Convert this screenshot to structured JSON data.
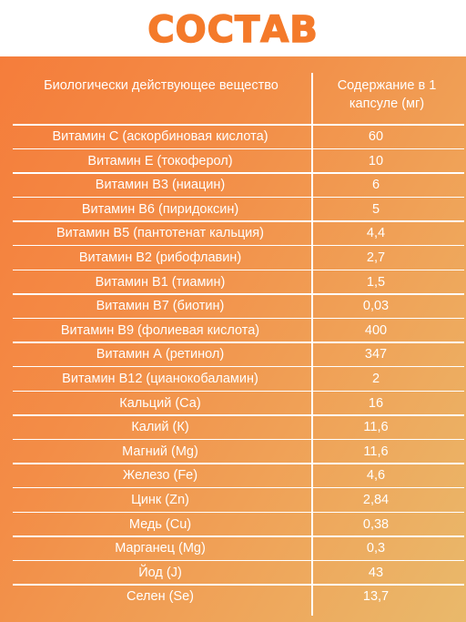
{
  "title": "СОСТАВ",
  "table": {
    "header": {
      "name": "Биологически действующее вещество",
      "value": "Содержание в 1 капсуле (мг)"
    },
    "rows": [
      {
        "name": "Витамин С (аскорбиновая кислота)",
        "value": "60"
      },
      {
        "name": "Витамин Е (токоферол)",
        "value": "10"
      },
      {
        "name": "Витамин В3 (ниацин)",
        "value": "6"
      },
      {
        "name": "Витамин В6 (пиридоксин)",
        "value": "5"
      },
      {
        "name": "Витамин В5 (пантотенат кальция)",
        "value": "4,4"
      },
      {
        "name": "Витамин В2 (рибофлавин)",
        "value": "2,7"
      },
      {
        "name": "Витамин В1 (тиамин)",
        "value": "1,5"
      },
      {
        "name": "Витамин В7 (биотин)",
        "value": "0,03"
      },
      {
        "name": "Витамин В9 (фолиевая кислота)",
        "value": "400"
      },
      {
        "name": "Витамин А (ретинол)",
        "value": "347"
      },
      {
        "name": "Витамин В12 (цианокобаламин)",
        "value": "2"
      },
      {
        "name": "Кальций (Са)",
        "value": "16"
      },
      {
        "name": "Калий (К)",
        "value": "11,6"
      },
      {
        "name": "Магний (Mg)",
        "value": "11,6"
      },
      {
        "name": "Железо (Fe)",
        "value": "4,6"
      },
      {
        "name": "Цинк (Zn)",
        "value": "2,84"
      },
      {
        "name": "Медь (Cu)",
        "value": "0,38"
      },
      {
        "name": "Марганец (Mg)",
        "value": "0,3"
      },
      {
        "name": "Йод (J)",
        "value": "43"
      },
      {
        "name": "Селен (Se)",
        "value": "13,7"
      }
    ]
  },
  "colors": {
    "title": "#f47a2a",
    "panel_start": "#f57d3b",
    "panel_end": "#e9b96b",
    "text": "#ffffff"
  }
}
